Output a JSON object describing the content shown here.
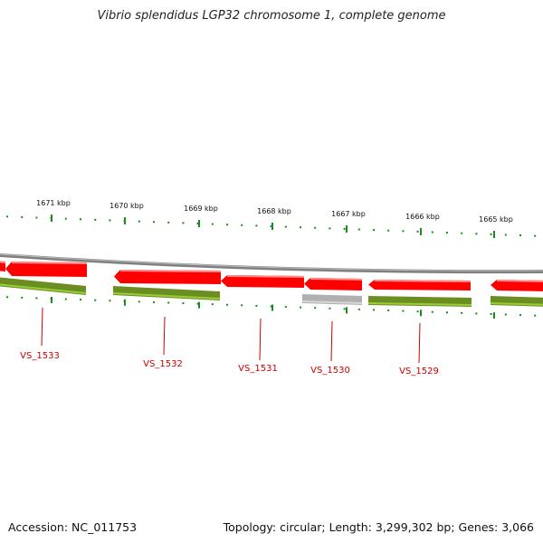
{
  "title": "Vibrio splendidus LGP32 chromosome 1, complete genome",
  "accession_text": "Accession: NC_011753",
  "topology_text": "Topology: circular; Length: 3,299,302 bp; Genes: 3,066",
  "colors": {
    "forward_strand_gene": "#ff0000",
    "reverse_strand_gene": "#6b8e23",
    "rna_gene": "#b0b0b0",
    "backbone": "#808080",
    "tick": "#1a8c1a",
    "gene_label": "#cc0000"
  },
  "ruler": {
    "unit": "kbp",
    "labels": [
      "1671 kbp",
      "1670 kbp",
      "1669 kbp",
      "1668 kbp",
      "1667 kbp",
      "1666 kbp",
      "1665 kbp"
    ]
  },
  "genes": [
    {
      "id": "VS_1533",
      "strand": "reverse",
      "type": "protein"
    },
    {
      "id": "VS_1532",
      "strand": "reverse",
      "type": "protein"
    },
    {
      "id": "VS_1531",
      "strand": "reverse",
      "type": "protein"
    },
    {
      "id": "VS_1530",
      "strand": "reverse",
      "type": "rna"
    },
    {
      "id": "VS_1529",
      "strand": "reverse",
      "type": "protein"
    }
  ]
}
